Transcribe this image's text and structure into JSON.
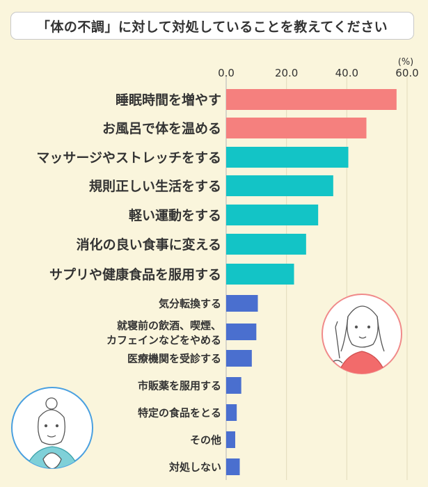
{
  "title": "「体の不調」に対して対処していることを教えてください",
  "chart_data": {
    "type": "bar",
    "orientation": "horizontal",
    "unit": "(%)",
    "xlim": [
      0,
      60
    ],
    "ticks": [
      "0.0",
      "20.0",
      "40.0",
      "60.0"
    ],
    "tick_values": [
      0,
      20,
      40,
      60
    ],
    "grid": true,
    "categories": [
      "睡眠時間を増やす",
      "お風呂で体を温める",
      "マッサージやストレッチをする",
      "規則正しい生活をする",
      "軽い運動をする",
      "消化の良い食事に変える",
      "サプリや健康食品を服用する",
      "気分転換する",
      [
        "就寝前の飲酒、喫煙、",
        "カフェインなどをやめる"
      ],
      "医療機関を受診する",
      "市販薬を服用する",
      "特定の食品をとる",
      "その他",
      "対処しない"
    ],
    "values": [
      56.5,
      46.5,
      40.5,
      35.5,
      30.5,
      26.5,
      22.5,
      10.5,
      10.0,
      8.5,
      5.0,
      3.5,
      3.0,
      4.5
    ],
    "colors": [
      "#f5807e",
      "#f5807e",
      "#13c4c6",
      "#13c4c6",
      "#13c4c6",
      "#13c4c6",
      "#13c4c6",
      "#4a6fcf",
      "#4a6fcf",
      "#4a6fcf",
      "#4a6fcf",
      "#4a6fcf",
      "#4a6fcf",
      "#4a6fcf"
    ]
  },
  "palette": {
    "top": "#f5807e",
    "mid": "#13c4c6",
    "low": "#4a6fcf",
    "background": "#faf5dc"
  },
  "illustrations": [
    "woman-pointing-illustration",
    "woman-praying-illustration"
  ]
}
